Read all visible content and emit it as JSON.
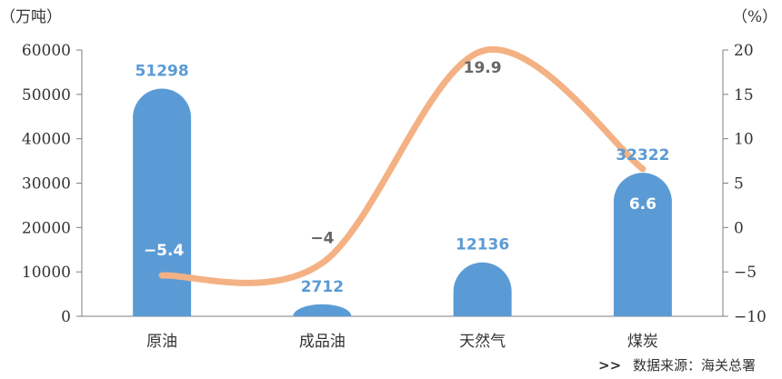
{
  "chart_data": {
    "type": "bar",
    "categories": [
      "原油",
      "成品油",
      "天然气",
      "煤炭"
    ],
    "series": [
      {
        "values": [
          51298,
          2712,
          12136,
          32322
        ],
        "axis": "left",
        "kind": "bar",
        "color": "#5b9bd5"
      },
      {
        "values": [
          -5.4,
          -4,
          19.9,
          6.6
        ],
        "axis": "right",
        "kind": "line",
        "color": "#f4b183"
      }
    ],
    "bar_labels": [
      "51298",
      "2712",
      "12136",
      "32322"
    ],
    "line_labels": [
      "−5.4",
      "−4",
      "19.9",
      "6.6"
    ],
    "left_axis": {
      "unit": "（万吨）",
      "ylim": [
        0,
        60000
      ],
      "ticks": [
        "0",
        "10000",
        "20000",
        "30000",
        "40000",
        "50000",
        "60000"
      ]
    },
    "right_axis": {
      "unit": "（%）",
      "ylim": [
        -10,
        20
      ],
      "ticks": [
        "−10",
        "−5",
        "0",
        "5",
        "10",
        "15",
        "20"
      ]
    },
    "grid": false,
    "source": "数据来源：海关总署",
    "source_marker": ">>",
    "colors": {
      "bar": "#5b9bd5",
      "line": "#f4b183",
      "bar_label": "#5b9bd5",
      "line_label_light": "#ffffff",
      "line_label_dark": "#666666"
    }
  }
}
